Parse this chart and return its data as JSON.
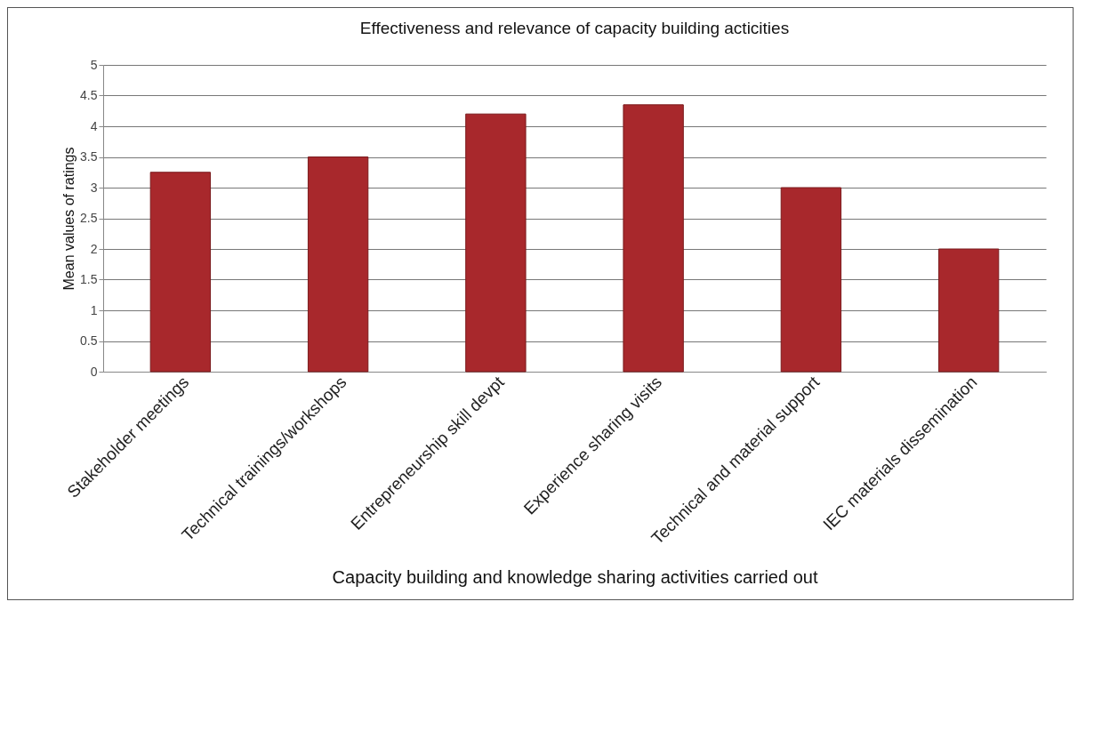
{
  "chart_data": {
    "type": "bar",
    "title": "Effectiveness and relevance of capacity building acticities",
    "xlabel": "Capacity building and knowledge sharing activities carried out",
    "ylabel": "Mean values of ratings",
    "categories": [
      "Stakeholder meetings",
      "Technical trainings/workshops",
      "Entrepreneurship skill devpt",
      "Experience sharing visits",
      "Technical and material support",
      "IEC materials dissemination"
    ],
    "values": [
      3.25,
      3.5,
      4.2,
      4.35,
      3.0,
      2.0
    ],
    "color": "#a8282c",
    "ylim": [
      0,
      5
    ],
    "yticks": [
      0,
      0.5,
      1,
      1.5,
      2,
      2.5,
      3,
      3.5,
      4,
      4.5,
      5
    ],
    "grid": "y"
  }
}
